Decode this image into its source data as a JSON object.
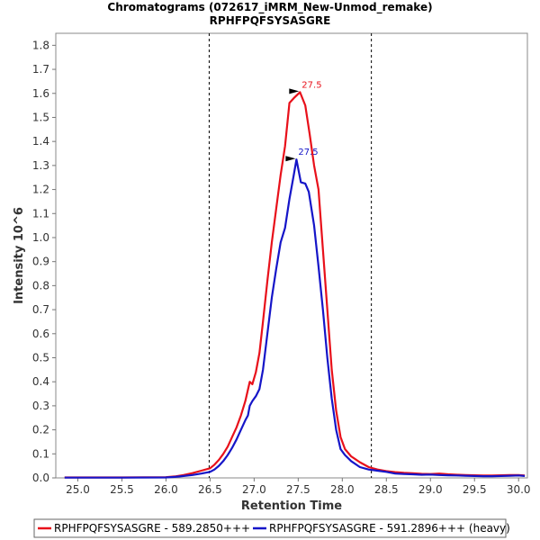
{
  "chart_data": {
    "type": "line",
    "title": "Chromatograms (072617_iMRM_New-Unmod_remake)",
    "subtitle": "RPHFPQFSYSASGRE",
    "xlabel": "Retention Time",
    "ylabel": "Intensity 10^6",
    "xlim": [
      24.75,
      30.1
    ],
    "ylim": [
      0,
      1.85
    ],
    "x_ticks": [
      "25.0",
      "25.5",
      "26.0",
      "26.5",
      "27.0",
      "27.5",
      "28.0",
      "28.5",
      "29.0",
      "29.5",
      "30.0"
    ],
    "y_ticks": [
      "0.0",
      "0.1",
      "0.2",
      "0.3",
      "0.4",
      "0.5",
      "0.6",
      "0.7",
      "0.8",
      "0.9",
      "1.0",
      "1.1",
      "1.2",
      "1.3",
      "1.4",
      "1.5",
      "1.6",
      "1.7",
      "1.8"
    ],
    "integration_bounds": [
      26.49,
      28.33
    ],
    "series": [
      {
        "name": "RPHFPQFSYSASGRE - 589.2850+++",
        "color": "#e8101a",
        "peak_label": "27.5",
        "peak": [
          27.52,
          1.605
        ],
        "points": [
          [
            24.85,
            0.002
          ],
          [
            25.5,
            0.002
          ],
          [
            26.0,
            0.003
          ],
          [
            26.1,
            0.006
          ],
          [
            26.2,
            0.012
          ],
          [
            26.3,
            0.02
          ],
          [
            26.4,
            0.03
          ],
          [
            26.5,
            0.04
          ],
          [
            26.55,
            0.055
          ],
          [
            26.6,
            0.075
          ],
          [
            26.65,
            0.1
          ],
          [
            26.7,
            0.13
          ],
          [
            26.75,
            0.17
          ],
          [
            26.8,
            0.21
          ],
          [
            26.85,
            0.26
          ],
          [
            26.9,
            0.32
          ],
          [
            26.95,
            0.4
          ],
          [
            26.98,
            0.39
          ],
          [
            27.02,
            0.44
          ],
          [
            27.06,
            0.52
          ],
          [
            27.1,
            0.65
          ],
          [
            27.15,
            0.82
          ],
          [
            27.2,
            0.98
          ],
          [
            27.25,
            1.12
          ],
          [
            27.3,
            1.26
          ],
          [
            27.35,
            1.38
          ],
          [
            27.4,
            1.56
          ],
          [
            27.45,
            1.58
          ],
          [
            27.52,
            1.605
          ],
          [
            27.58,
            1.55
          ],
          [
            27.63,
            1.43
          ],
          [
            27.68,
            1.3
          ],
          [
            27.73,
            1.2
          ],
          [
            27.78,
            0.95
          ],
          [
            27.83,
            0.7
          ],
          [
            27.88,
            0.45
          ],
          [
            27.93,
            0.28
          ],
          [
            27.98,
            0.17
          ],
          [
            28.03,
            0.12
          ],
          [
            28.1,
            0.09
          ],
          [
            28.2,
            0.065
          ],
          [
            28.3,
            0.045
          ],
          [
            28.4,
            0.035
          ],
          [
            28.5,
            0.028
          ],
          [
            28.6,
            0.024
          ],
          [
            28.7,
            0.021
          ],
          [
            28.8,
            0.019
          ],
          [
            28.9,
            0.017
          ],
          [
            29.0,
            0.016
          ],
          [
            29.1,
            0.018
          ],
          [
            29.2,
            0.015
          ],
          [
            29.3,
            0.013
          ],
          [
            29.4,
            0.012
          ],
          [
            29.5,
            0.011
          ],
          [
            29.6,
            0.01
          ],
          [
            29.7,
            0.01
          ],
          [
            29.8,
            0.011
          ],
          [
            29.9,
            0.012
          ],
          [
            30.0,
            0.012
          ],
          [
            30.07,
            0.01
          ]
        ]
      },
      {
        "name": "RPHFPQFSYSASGRE - 591.2896+++ (heavy)",
        "color": "#1515c8",
        "peak_label": "27.5",
        "peak": [
          27.48,
          1.325
        ],
        "points": [
          [
            24.85,
            0.001
          ],
          [
            25.5,
            0.001
          ],
          [
            26.0,
            0.002
          ],
          [
            26.1,
            0.004
          ],
          [
            26.2,
            0.008
          ],
          [
            26.3,
            0.012
          ],
          [
            26.4,
            0.018
          ],
          [
            26.5,
            0.025
          ],
          [
            26.55,
            0.035
          ],
          [
            26.6,
            0.05
          ],
          [
            26.65,
            0.07
          ],
          [
            26.7,
            0.095
          ],
          [
            26.75,
            0.125
          ],
          [
            26.8,
            0.16
          ],
          [
            26.85,
            0.2
          ],
          [
            26.9,
            0.24
          ],
          [
            26.93,
            0.26
          ],
          [
            26.95,
            0.3
          ],
          [
            26.98,
            0.32
          ],
          [
            27.02,
            0.34
          ],
          [
            27.06,
            0.37
          ],
          [
            27.1,
            0.45
          ],
          [
            27.15,
            0.6
          ],
          [
            27.2,
            0.75
          ],
          [
            27.25,
            0.87
          ],
          [
            27.3,
            0.98
          ],
          [
            27.35,
            1.04
          ],
          [
            27.4,
            1.16
          ],
          [
            27.45,
            1.26
          ],
          [
            27.48,
            1.325
          ],
          [
            27.53,
            1.23
          ],
          [
            27.58,
            1.225
          ],
          [
            27.62,
            1.19
          ],
          [
            27.68,
            1.05
          ],
          [
            27.73,
            0.88
          ],
          [
            27.78,
            0.7
          ],
          [
            27.83,
            0.5
          ],
          [
            27.88,
            0.33
          ],
          [
            27.93,
            0.2
          ],
          [
            27.98,
            0.12
          ],
          [
            28.03,
            0.095
          ],
          [
            28.1,
            0.07
          ],
          [
            28.2,
            0.045
          ],
          [
            28.3,
            0.035
          ],
          [
            28.4,
            0.03
          ],
          [
            28.5,
            0.025
          ],
          [
            28.6,
            0.018
          ],
          [
            28.7,
            0.016
          ],
          [
            28.8,
            0.015
          ],
          [
            28.9,
            0.013
          ],
          [
            29.0,
            0.014
          ],
          [
            29.1,
            0.012
          ],
          [
            29.2,
            0.011
          ],
          [
            29.3,
            0.01
          ],
          [
            29.4,
            0.009
          ],
          [
            29.5,
            0.008
          ],
          [
            29.6,
            0.007
          ],
          [
            29.7,
            0.007
          ],
          [
            29.8,
            0.008
          ],
          [
            29.9,
            0.009
          ],
          [
            30.0,
            0.01
          ],
          [
            30.07,
            0.008
          ]
        ]
      }
    ]
  }
}
